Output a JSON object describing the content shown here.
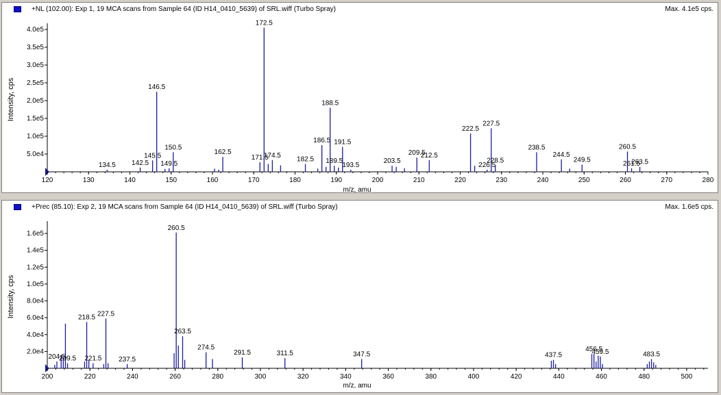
{
  "panels": [
    {
      "title": "+NL (102.00): Exp 1, 19 MCA scans from Sample 64 (ID H14_0410_5639) of SRL.wiff (Turbo Spray)",
      "max_label": "Max. 4.1e5 cps."
    },
    {
      "title": "+Prec (85.10): Exp 2, 19 MCA scans from Sample 64 (ID H14_0410_5639) of SRL.wiff (Turbo Spray)",
      "max_label": "Max. 1.6e5 cps."
    }
  ],
  "colors": {
    "trace": "#1a1aa0",
    "axis": "#000000",
    "header_square": "#1010c8",
    "background": "#ffffff"
  },
  "chart_data": [
    {
      "type": "bar",
      "xlabel": "m/z, amu",
      "ylabel": "Intensity, cps",
      "xlim": [
        120,
        280
      ],
      "ylim": [
        0,
        410000
      ],
      "x_ticks": [
        120,
        130,
        140,
        150,
        160,
        170,
        180,
        190,
        200,
        210,
        220,
        230,
        240,
        250,
        260,
        270,
        280
      ],
      "y_ticks": [
        {
          "v": 50000,
          "label": "5.0e4"
        },
        {
          "v": 100000,
          "label": "1.0e5"
        },
        {
          "v": 150000,
          "label": "1.5e5"
        },
        {
          "v": 200000,
          "label": "2.0e5"
        },
        {
          "v": 250000,
          "label": "2.5e5"
        },
        {
          "v": 300000,
          "label": "3.0e5"
        },
        {
          "v": 350000,
          "label": "3.5e5"
        },
        {
          "v": 400000,
          "label": "4.0e5"
        }
      ],
      "peaks": [
        {
          "x": 134.5,
          "y": 6000,
          "label": "134.5"
        },
        {
          "x": 142.5,
          "y": 12000,
          "label": "142.5"
        },
        {
          "x": 145.5,
          "y": 32000,
          "label": "145.5"
        },
        {
          "x": 146.5,
          "y": 225000,
          "label": "146.5"
        },
        {
          "x": 148.5,
          "y": 8000
        },
        {
          "x": 149.5,
          "y": 10000,
          "label": "149.5"
        },
        {
          "x": 150.5,
          "y": 55000,
          "label": "150.5"
        },
        {
          "x": 160.5,
          "y": 9000
        },
        {
          "x": 161.5,
          "y": 6000
        },
        {
          "x": 162.5,
          "y": 42000,
          "label": "162.5"
        },
        {
          "x": 171.5,
          "y": 27000,
          "label": "171.5"
        },
        {
          "x": 172.5,
          "y": 405000,
          "label": "172.5"
        },
        {
          "x": 173.5,
          "y": 22000
        },
        {
          "x": 174.5,
          "y": 33000,
          "label": "174.5"
        },
        {
          "x": 176.5,
          "y": 18000
        },
        {
          "x": 182.5,
          "y": 22000,
          "label": "182.5"
        },
        {
          "x": 185.5,
          "y": 9000
        },
        {
          "x": 186.5,
          "y": 75000,
          "label": "186.5"
        },
        {
          "x": 187.5,
          "y": 14000
        },
        {
          "x": 188.5,
          "y": 180000,
          "label": "188.5"
        },
        {
          "x": 189.5,
          "y": 17000,
          "label": "189.5"
        },
        {
          "x": 190.5,
          "y": 12000
        },
        {
          "x": 191.5,
          "y": 70000,
          "label": "191.5"
        },
        {
          "x": 193.5,
          "y": 6000,
          "label": "193.5"
        },
        {
          "x": 203.5,
          "y": 17000,
          "label": "203.5"
        },
        {
          "x": 204.5,
          "y": 14000
        },
        {
          "x": 206.5,
          "y": 10000
        },
        {
          "x": 209.5,
          "y": 40000,
          "label": "209.5"
        },
        {
          "x": 212.5,
          "y": 33000,
          "label": "212.5"
        },
        {
          "x": 222.5,
          "y": 108000,
          "label": "222.5"
        },
        {
          "x": 223.5,
          "y": 17000
        },
        {
          "x": 226.5,
          "y": 6000,
          "label": "226.5"
        },
        {
          "x": 227.5,
          "y": 122000,
          "label": "227.5"
        },
        {
          "x": 228.5,
          "y": 18000,
          "label": "228.5"
        },
        {
          "x": 238.5,
          "y": 55000,
          "label": "238.5"
        },
        {
          "x": 244.5,
          "y": 35000,
          "label": "244.5"
        },
        {
          "x": 246.5,
          "y": 9000
        },
        {
          "x": 249.5,
          "y": 20000,
          "label": "249.5"
        },
        {
          "x": 260.5,
          "y": 57000,
          "label": "260.5"
        },
        {
          "x": 261.5,
          "y": 10000,
          "label": "261.5"
        },
        {
          "x": 263.5,
          "y": 14000,
          "label": "263.5"
        }
      ]
    },
    {
      "type": "bar",
      "xlabel": "m/z, amu",
      "ylabel": "Intensity, cps",
      "xlim": [
        200,
        510
      ],
      "ylim": [
        0,
        161000
      ],
      "x_ticks": [
        200,
        220,
        240,
        260,
        280,
        300,
        320,
        340,
        360,
        380,
        400,
        420,
        440,
        460,
        480,
        500
      ],
      "y_ticks": [
        {
          "v": 20000,
          "label": "2.0e4"
        },
        {
          "v": 40000,
          "label": "4.0e4"
        },
        {
          "v": 60000,
          "label": "6.0e4"
        },
        {
          "v": 80000,
          "label": "8.0e4"
        },
        {
          "v": 100000,
          "label": "1.0e5"
        },
        {
          "v": 120000,
          "label": "1.2e5"
        },
        {
          "v": 140000,
          "label": "1.4e5"
        },
        {
          "v": 160000,
          "label": "1.6e5"
        }
      ],
      "peaks": [
        {
          "x": 203.5,
          "y": 4000
        },
        {
          "x": 204.5,
          "y": 8000,
          "label": "204.5"
        },
        {
          "x": 206.5,
          "y": 16000
        },
        {
          "x": 207.5,
          "y": 12000
        },
        {
          "x": 208.5,
          "y": 53000
        },
        {
          "x": 209.5,
          "y": 6000,
          "label": "209.5"
        },
        {
          "x": 217.5,
          "y": 8000
        },
        {
          "x": 218.5,
          "y": 55000,
          "label": "218.5"
        },
        {
          "x": 219.5,
          "y": 10000
        },
        {
          "x": 221.5,
          "y": 6000,
          "label": "221.5"
        },
        {
          "x": 226.5,
          "y": 5000
        },
        {
          "x": 227.5,
          "y": 59000,
          "label": "227.5"
        },
        {
          "x": 228.5,
          "y": 6000
        },
        {
          "x": 237.5,
          "y": 5000,
          "label": "237.5"
        },
        {
          "x": 259.5,
          "y": 18000
        },
        {
          "x": 260.5,
          "y": 161000,
          "label": "260.5"
        },
        {
          "x": 261.5,
          "y": 27000
        },
        {
          "x": 263.5,
          "y": 38000,
          "label": "263.5"
        },
        {
          "x": 264.5,
          "y": 10000
        },
        {
          "x": 274.5,
          "y": 19000,
          "label": "274.5"
        },
        {
          "x": 277.5,
          "y": 11000
        },
        {
          "x": 291.5,
          "y": 13000,
          "label": "291.5"
        },
        {
          "x": 311.5,
          "y": 12000,
          "label": "311.5"
        },
        {
          "x": 347.5,
          "y": 11000,
          "label": "347.5"
        },
        {
          "x": 436.5,
          "y": 9000
        },
        {
          "x": 437.5,
          "y": 10000,
          "label": "437.5"
        },
        {
          "x": 438.5,
          "y": 5000
        },
        {
          "x": 455.5,
          "y": 17000
        },
        {
          "x": 456.5,
          "y": 17000,
          "label": "456.5"
        },
        {
          "x": 457.5,
          "y": 8000
        },
        {
          "x": 458.5,
          "y": 15000
        },
        {
          "x": 459.5,
          "y": 14000,
          "label": "459.5"
        },
        {
          "x": 460.5,
          "y": 5000
        },
        {
          "x": 481.5,
          "y": 5000
        },
        {
          "x": 482.5,
          "y": 8000
        },
        {
          "x": 483.5,
          "y": 11000,
          "label": "483.5"
        },
        {
          "x": 484.5,
          "y": 7000
        },
        {
          "x": 485.5,
          "y": 4000
        }
      ]
    }
  ]
}
